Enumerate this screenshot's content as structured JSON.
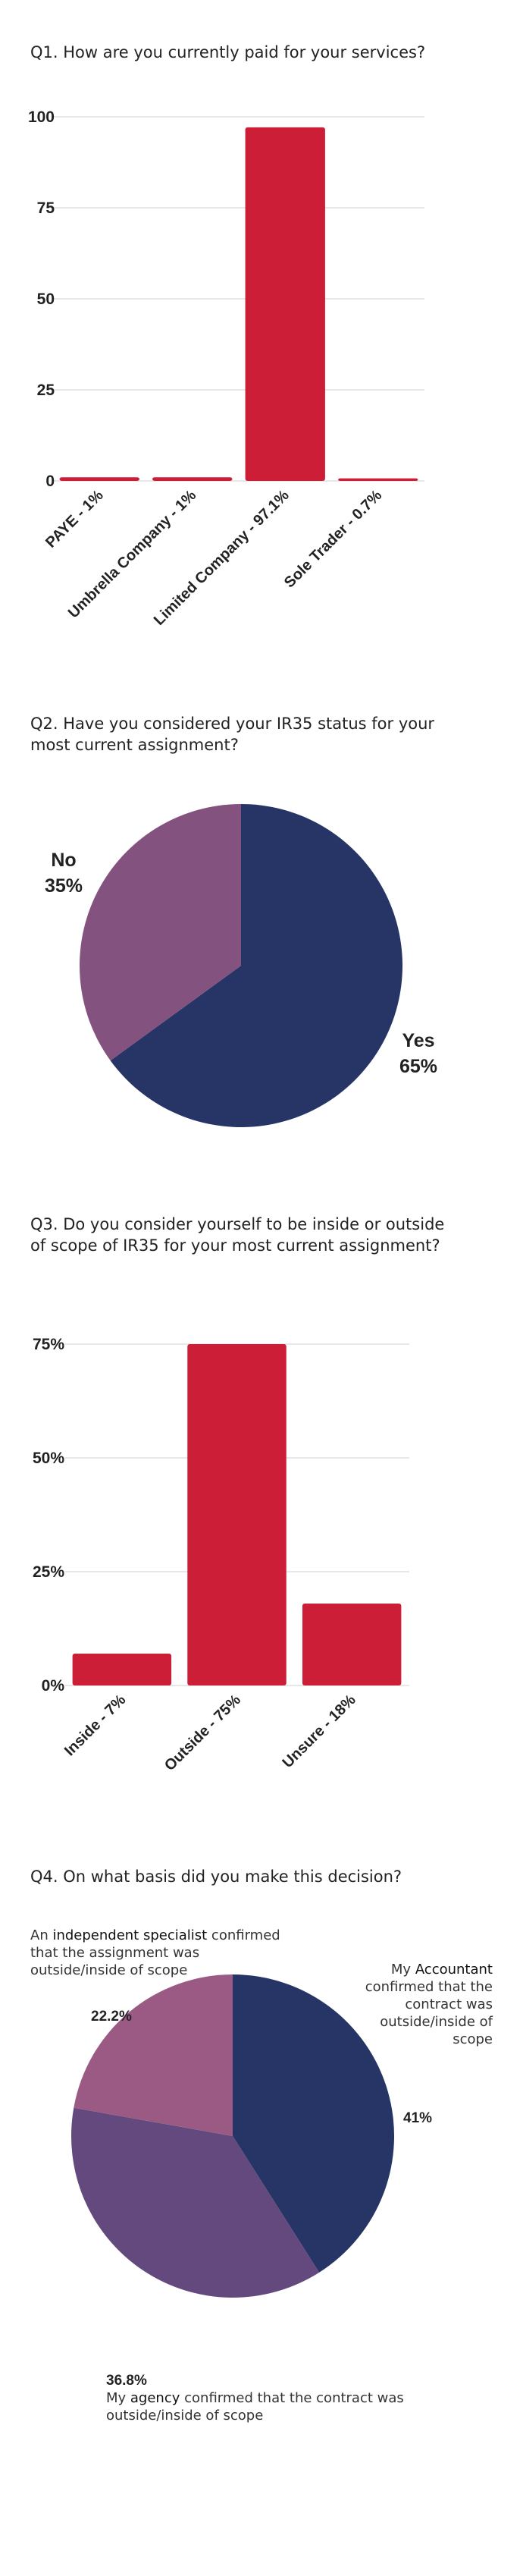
{
  "questions": {
    "q1": "Q1. How are you currently paid for your services?",
    "q2": "Q2. Have you considered your IR35 status for your most current assignment?",
    "q3": "Q3. Do you consider yourself to be inside or outside of scope of IR35 for your most current assignment?",
    "q4": "Q4. On what basis did you make this decision?"
  },
  "chart_data": [
    {
      "type": "bar",
      "categories": [
        "PAYE - 1%",
        "Umbrella Company - 1%",
        "Limited Company - 97.1%",
        "Sole Trader - 0.7%"
      ],
      "values": [
        1,
        1,
        97.1,
        0.7
      ],
      "ylim": [
        0,
        100
      ],
      "yticks": [
        "0",
        "25",
        "50",
        "75",
        "100"
      ],
      "grid": true,
      "color": "#cc1f37"
    },
    {
      "type": "pie",
      "slices": [
        {
          "label": "Yes",
          "pct_label": "65%",
          "value": 65,
          "color": "#263566"
        },
        {
          "label": "No",
          "pct_label": "35%",
          "value": 35,
          "color": "#84527f"
        }
      ]
    },
    {
      "type": "bar",
      "categories": [
        "Inside - 7%",
        "Outside - 75%",
        "Unsure - 18%"
      ],
      "values": [
        7,
        75,
        18
      ],
      "ylim": [
        0,
        75
      ],
      "yticks": [
        "0%",
        "25%",
        "50%",
        "75%"
      ],
      "grid": true,
      "color": "#cc1f37"
    },
    {
      "type": "pie",
      "slices": [
        {
          "pct_label": "41%",
          "value": 41,
          "color": "#263566",
          "label_pre": "My ",
          "label_key": "Accountant",
          "label_post": " confirmed that the contract was outside/inside of scope"
        },
        {
          "pct_label": "36.8%",
          "value": 36.8,
          "color": "#63497d",
          "label_pre": "My ",
          "label_key": "agency",
          "label_post": " confirmed that the contract was outside/inside of scope"
        },
        {
          "pct_label": "22.2%",
          "value": 22.2,
          "color": "#9a5a84",
          "label_pre": "An ",
          "label_key": "independent specialist",
          "label_post": " confirmed that the assignment was outside/inside of scope"
        }
      ]
    }
  ]
}
